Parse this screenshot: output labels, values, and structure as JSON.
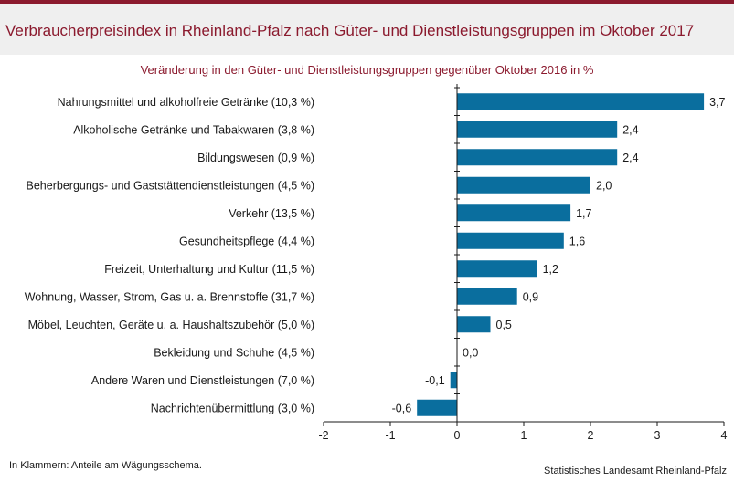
{
  "header": {
    "title": "Verbraucherpreisindex in Rheinland-Pfalz nach Güter- und Dienstleistungsgruppen im Oktober 2017"
  },
  "chart_data": {
    "type": "bar",
    "orientation": "horizontal",
    "title": "Veränderung in den Güter- und Dienstleistungsgruppen gegenüber Oktober 2016 in %",
    "categories": [
      "Nahrungsmittel und alkoholfreie Getränke (10,3 %)",
      "Alkoholische Getränke und Tabakwaren (3,8 %)",
      "Bildungswesen (0,9 %)",
      "Beherbergungs- und Gaststättendienstleistungen (4,5 %)",
      "Verkehr (13,5 %)",
      "Gesundheitspflege (4,4 %)",
      "Freizeit, Unterhaltung und Kultur (11,5 %)",
      "Wohnung, Wasser, Strom, Gas u. a. Brennstoffe (31,7 %)",
      "Möbel, Leuchten, Geräte u. a. Haushaltszubehör  (5,0 %)",
      "Bekleidung und Schuhe (4,5 %)",
      "Andere Waren und Dienstleistungen (7,0 %)",
      "Nachrichtenübermittlung (3,0 %)"
    ],
    "values": [
      3.7,
      2.4,
      2.4,
      2.0,
      1.7,
      1.6,
      1.2,
      0.9,
      0.5,
      0.0,
      -0.1,
      -0.6
    ],
    "value_labels": [
      "3,7",
      "2,4",
      "2,4",
      "2,0",
      "1,7",
      "1,6",
      "1,2",
      "0,9",
      "0,5",
      "0,0",
      "-0,1",
      "-0,6"
    ],
    "xlim": [
      -2,
      4
    ],
    "xticks": [
      -2,
      -1,
      0,
      1,
      2,
      3,
      4
    ],
    "xtick_labels": [
      "-2",
      "-1",
      "0",
      "1",
      "2",
      "3",
      "4"
    ],
    "grid": false,
    "legend": "none",
    "bar_color": "#0a6e9e"
  },
  "footer": {
    "note": "In Klammern: Anteile am Wägungsschema.",
    "source": "Statistisches Landesamt Rheinland-Pfalz"
  }
}
